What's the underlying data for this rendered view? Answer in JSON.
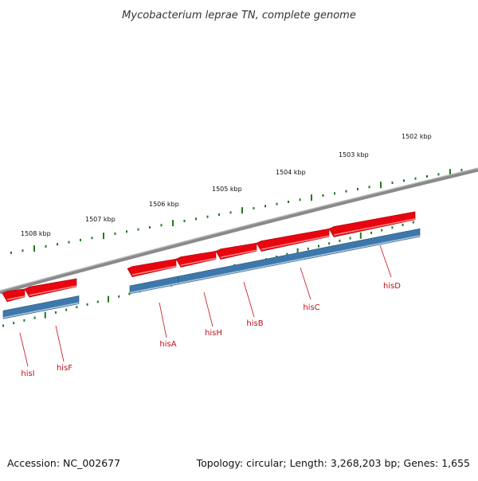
{
  "title": "Mycobacterium leprae TN, complete genome",
  "footer": {
    "accession": "Accession: NC_002677",
    "summary": "Topology: circular; Length: 3,268,203 bp; Genes: 1,655"
  },
  "colors": {
    "forward_gene": "#e8050f",
    "cds": "#3e78ab",
    "backbone": "#8a8a8a",
    "tick": "#1f7a1f",
    "gene_label": "#c0101a",
    "kbp_label": "#111111"
  },
  "kbp_labels": [
    "1508 kbp",
    "1507 kbp",
    "1506 kbp",
    "1505 kbp",
    "1504 kbp",
    "1503 kbp",
    "1502 kbp"
  ],
  "gene_labels": [
    "hisI",
    "hisF",
    "hisA",
    "hisH",
    "hisB",
    "hisC",
    "hisD"
  ]
}
